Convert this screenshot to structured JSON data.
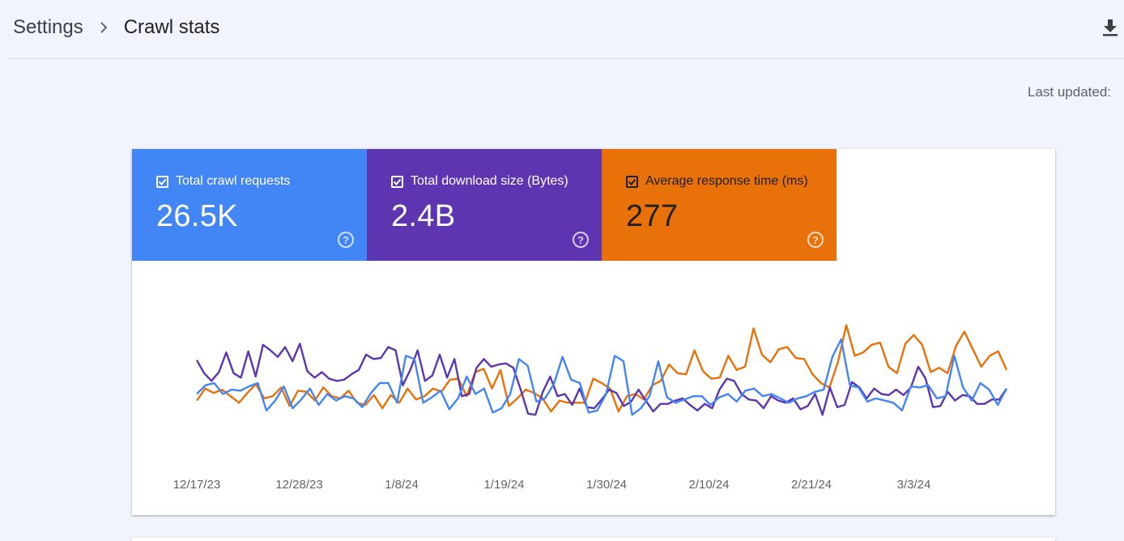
{
  "breadcrumb": {
    "parent": "Settings",
    "separator": "›",
    "current": "Crawl stats"
  },
  "header": {
    "download_icon": "download-icon"
  },
  "last_updated_label": "Last updated:",
  "metrics": [
    {
      "label": "Total crawl requests",
      "value": "26.5K",
      "color": "#4285f4",
      "checked": true
    },
    {
      "label": "Total download size (Bytes)",
      "value": "2.4B",
      "color": "#5e35b1",
      "checked": true
    },
    {
      "label": "Average response time (ms)",
      "value": "277",
      "color": "#e8710a",
      "checked": true
    }
  ],
  "chart_data": {
    "type": "line",
    "x_tick_labels": [
      "12/17/23",
      "12/28/23",
      "1/8/24",
      "1/19/24",
      "1/30/24",
      "2/10/24",
      "2/21/24",
      "3/3/24"
    ],
    "y_axis_labels_visible": false,
    "grid": false,
    "legend": "top (metric cards)",
    "series": [
      {
        "name": "Total crawl requests",
        "color": "#4285f4",
        "values": [
          30,
          38,
          40,
          30,
          34,
          33,
          37,
          40,
          15,
          24,
          37,
          17,
          25,
          35,
          20,
          30,
          24,
          28,
          26,
          18,
          31,
          40,
          40,
          22,
          65,
          62,
          22,
          27,
          33,
          16,
          26,
          46,
          30,
          35,
          13,
          17,
          30,
          62,
          56,
          23,
          26,
          39,
          64,
          43,
          40,
          13,
          15,
          30,
          65,
          60,
          11,
          17,
          28,
          60,
          27,
          22,
          25,
          28,
          28,
          20,
          27,
          30,
          23,
          33,
          35,
          28,
          30,
          26,
          22,
          26,
          28,
          32,
          34,
          64,
          80,
          38,
          36,
          23,
          26,
          24,
          22,
          15,
          37,
          36,
          38,
          26,
          28,
          65,
          36,
          24,
          40,
          34,
          20,
          35
        ]
      },
      {
        "name": "Total download size (Bytes)",
        "color": "#5e35b1",
        "values": [
          61,
          49,
          42,
          50,
          68,
          49,
          45,
          69,
          46,
          75,
          70,
          64,
          73,
          60,
          76,
          51,
          45,
          50,
          44,
          42,
          43,
          48,
          52,
          66,
          62,
          63,
          73,
          70,
          38,
          52,
          70,
          42,
          47,
          66,
          45,
          62,
          28,
          30,
          54,
          62,
          55,
          57,
          58,
          54,
          34,
          12,
          11,
          32,
          46,
          28,
          30,
          20,
          35,
          18,
          17,
          25,
          34,
          31,
          19,
          23,
          34,
          24,
          14,
          21,
          21,
          24,
          26,
          20,
          15,
          21,
          17,
          34,
          44,
          42,
          30,
          25,
          24,
          17,
          28,
          24,
          22,
          26,
          16,
          19,
          30,
          11,
          36,
          18,
          20,
          41,
          36,
          26,
          35,
          30,
          29,
          34,
          29,
          36,
          55,
          44,
          18,
          19,
          32,
          24,
          29,
          28,
          21,
          21,
          25,
          25,
          35
        ]
      },
      {
        "name": "Average response time (ms)",
        "color": "#e8710a",
        "values": [
          24,
          35,
          31,
          34,
          28,
          22,
          31,
          39,
          26,
          28,
          36,
          19,
          33,
          32,
          24,
          36,
          28,
          26,
          33,
          22,
          20,
          29,
          17,
          29,
          22,
          35,
          25,
          28,
          35,
          32,
          43,
          44,
          28,
          50,
          53,
          35,
          52,
          19,
          26,
          34,
          31,
          26,
          14,
          24,
          22,
          22,
          22,
          44,
          40,
          35,
          14,
          28,
          30,
          25,
          38,
          42,
          57,
          49,
          48,
          70,
          51,
          44,
          45,
          65,
          52,
          55,
          90,
          66,
          59,
          71,
          73,
          63,
          62,
          48,
          40,
          36,
          59,
          93,
          65,
          68,
          75,
          77,
          55,
          49,
          76,
          84,
          75,
          50,
          54,
          49,
          74,
          87,
          71,
          55,
          65,
          69,
          52
        ]
      }
    ]
  }
}
